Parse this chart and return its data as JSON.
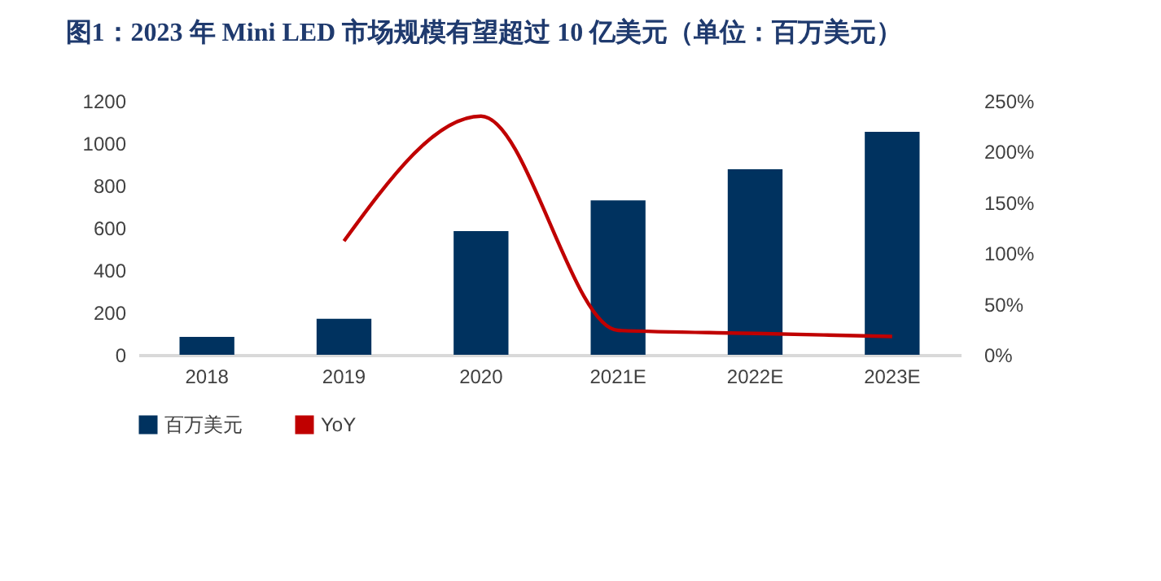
{
  "chart_data": {
    "type": "bar",
    "title": "图1：2023 年 Mini LED 市场规模有望超过 10 亿美元（单位：百万美元）",
    "categories": [
      "2018",
      "2019",
      "2020",
      "2021E",
      "2022E",
      "2023E"
    ],
    "series": [
      {
        "name": "百万美元",
        "color": "#00325f",
        "values": [
          85,
          170,
          585,
          730,
          877,
          1054
        ]
      },
      {
        "name": "YoY",
        "type": "line",
        "axis": "y2",
        "color": "#c00000",
        "values": [
          null,
          112,
          235,
          24,
          21,
          18
        ]
      }
    ],
    "ylim": [
      0,
      1200
    ],
    "yticks": [
      0,
      200,
      400,
      600,
      800,
      1000,
      1200
    ],
    "y2lim": [
      0,
      250
    ],
    "y2ticks": [
      {
        "value": 0,
        "label": "0%"
      },
      {
        "value": 50,
        "label": "50%"
      },
      {
        "value": 100,
        "label": "100%"
      },
      {
        "value": 150,
        "label": "150%"
      },
      {
        "value": 200,
        "label": "200%"
      },
      {
        "value": 250,
        "label": "250%"
      }
    ],
    "grid": false,
    "legend": "bottom"
  }
}
